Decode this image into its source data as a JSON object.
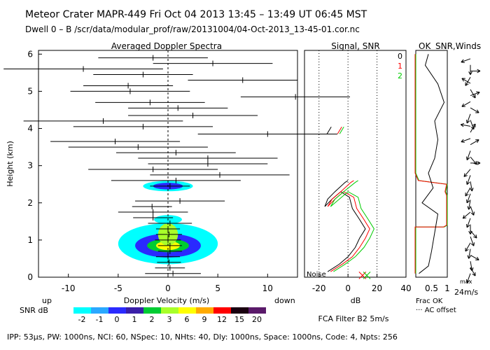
{
  "header": {
    "line1": "Meteor Crater   MAPR-449   Fri Oct 04 2013 13:45 – 13:49 UT 06:45 MST",
    "line2": "Dwell  0 –  B   /scr/data/modular_prof/raw/20131004/04-Oct-2013_13-45-01.cor.nc"
  },
  "footer": {
    "params": "IPP: 53μs,  PW: 1000ns,  NCI: 60,  NSpec: 10, NHts: 40,  Dly: 1000ns,  Space: 1000ns,  Code: 4,  Npts: 256",
    "filter": "FCA Filter B2   5m/s",
    "up": "up",
    "down": "down",
    "snr_db": "SNR dB",
    "noise": "Noise",
    "frac_ok": "Frac OK",
    "ac_offset": "··· AC offset",
    "wind_scale": "24m/s",
    "wind_scale_sup": "max",
    "ok_label": "OK"
  },
  "colorbar": {
    "labels": [
      "-2",
      "-1",
      "0",
      "1",
      "2",
      "3",
      "6",
      "9",
      "12",
      "15",
      "20"
    ],
    "colors": [
      "#00ffff",
      "#2aa8ff",
      "#2a2aff",
      "#3a1fa8",
      "#00cc33",
      "#a8ff2a",
      "#ffff00",
      "#ffaa00",
      "#ff0000",
      "#1a0010",
      "#5a1a6a"
    ]
  },
  "chart_data": [
    {
      "type": "scatter",
      "title": "Averaged Doppler Spectra",
      "xlabel": "Doppler Velocity (m/s)",
      "ylabel": "Height (km)",
      "xlim": [
        -13,
        13
      ],
      "ylim": [
        0,
        6.1
      ],
      "xticks": [
        "-10",
        "-5",
        "0",
        "5",
        "10"
      ],
      "yticks": [
        "0",
        "1",
        "2",
        "3",
        "4",
        "5",
        "6"
      ],
      "moments": [
        {
          "h": 0.1,
          "v": 0.5,
          "w": 2.8
        },
        {
          "h": 0.25,
          "v": 0.2,
          "w": 1.5
        },
        {
          "h": 0.4,
          "v": 0.1,
          "w": 1.2
        },
        {
          "h": 0.55,
          "v": 0.0,
          "w": 1.2
        },
        {
          "h": 0.7,
          "v": 0.2,
          "w": 1.2
        },
        {
          "h": 0.85,
          "v": 0.2,
          "w": 1.2
        },
        {
          "h": 1.0,
          "v": 0.0,
          "w": 1.3
        },
        {
          "h": 1.15,
          "v": 0.1,
          "w": 1.3
        },
        {
          "h": 1.3,
          "v": 0.0,
          "w": 1.2
        },
        {
          "h": 1.45,
          "v": 0.2,
          "w": 2.2
        },
        {
          "h": 1.6,
          "v": -1.5,
          "w": 2.0
        },
        {
          "h": 1.75,
          "v": -1.5,
          "w": 3.5
        },
        {
          "h": 1.9,
          "v": -1.6,
          "w": 2.0
        },
        {
          "h": 2.05,
          "v": 1.2,
          "w": 4.5
        },
        {
          "h": 2.45,
          "v": 0.2,
          "w": 2.0
        },
        {
          "h": 2.6,
          "v": 0.8,
          "w": 6.5
        },
        {
          "h": 2.75,
          "v": 5.2,
          "w": 7.0
        },
        {
          "h": 2.9,
          "v": -1.5,
          "w": 6.5
        },
        {
          "h": 3.05,
          "v": 4.0,
          "w": 6.0
        },
        {
          "h": 3.2,
          "v": 4.0,
          "w": 7.0
        },
        {
          "h": 3.35,
          "v": 0.8,
          "w": 6.0
        },
        {
          "h": 3.5,
          "v": -3.0,
          "w": 7.0
        },
        {
          "h": 3.65,
          "v": -5.3,
          "w": 6.5
        },
        {
          "h": 3.85,
          "v": 10.0,
          "w": 7.0
        },
        {
          "h": 4.05,
          "v": -2.5,
          "w": 7.0
        },
        {
          "h": 4.2,
          "v": -6.5,
          "w": 8.0
        },
        {
          "h": 4.35,
          "v": 2.5,
          "w": 6.5
        },
        {
          "h": 4.55,
          "v": 1.0,
          "w": 5.0
        },
        {
          "h": 4.7,
          "v": -1.8,
          "w": 5.5
        },
        {
          "h": 4.85,
          "v": 12.8,
          "w": 5.5
        },
        {
          "h": 5.0,
          "v": -3.8,
          "w": 6.0
        },
        {
          "h": 5.15,
          "v": -4.0,
          "w": 4.5
        },
        {
          "h": 5.3,
          "v": 7.5,
          "w": 5.5
        },
        {
          "h": 5.45,
          "v": -2.5,
          "w": 5.0
        },
        {
          "h": 5.6,
          "v": -8.5,
          "w": 8.0
        },
        {
          "h": 5.75,
          "v": 4.5,
          "w": 6.0
        },
        {
          "h": 5.9,
          "v": -1.5,
          "w": 5.5
        }
      ],
      "contours": [
        {
          "x": 0,
          "h": 0.9,
          "rx": 5.0,
          "rh": 0.55,
          "color": "#00ffff"
        },
        {
          "x": 0,
          "h": 0.85,
          "rx": 3.3,
          "rh": 0.32,
          "color": "#2a2aff"
        },
        {
          "x": 0,
          "h": 0.85,
          "rx": 2.1,
          "rh": 0.18,
          "color": "#00cc33"
        },
        {
          "x": 0,
          "h": 0.85,
          "rx": 1.2,
          "rh": 0.12,
          "color": "#ffff00"
        },
        {
          "x": 0,
          "h": 1.15,
          "rx": 1.0,
          "rh": 0.3,
          "color": "#a8ff2a"
        },
        {
          "x": 0,
          "h": 1.55,
          "rx": 1.4,
          "rh": 0.12,
          "color": "#00ffff"
        },
        {
          "x": 0,
          "h": 2.45,
          "rx": 2.5,
          "rh": 0.14,
          "color": "#00ffff"
        },
        {
          "x": 0,
          "h": 2.45,
          "rx": 1.5,
          "rh": 0.09,
          "color": "#2a2aff"
        }
      ]
    },
    {
      "type": "line",
      "title": "Signal, SNR",
      "xlabel": "dB",
      "xlim": [
        -30,
        40
      ],
      "ylim": [
        0,
        6.1
      ],
      "xticks": [
        "-20",
        "0",
        "20",
        "40"
      ],
      "legend": [
        "0",
        "1",
        "2"
      ],
      "series": [
        {
          "name": "0",
          "color": "#000000",
          "points": [
            [
              -14,
              0.15
            ],
            [
              -6,
              0.35
            ],
            [
              0,
              0.55
            ],
            [
              5,
              0.8
            ],
            [
              8,
              1.05
            ],
            [
              12,
              1.3
            ],
            [
              8,
              1.55
            ],
            [
              3,
              1.85
            ],
            [
              1,
              2.15
            ],
            [
              -5,
              2.3
            ],
            [
              -11,
              2.1
            ],
            [
              -16,
              1.9
            ],
            [
              -14,
              2.1
            ],
            [
              -9,
              2.3
            ],
            [
              -2,
              2.55
            ],
            [
              0,
              2.6
            ]
          ]
        },
        {
          "name": "1",
          "color": "#ff0000",
          "points": [
            [
              -12,
              0.15
            ],
            [
              -4,
              0.35
            ],
            [
              3,
              0.55
            ],
            [
              8,
              0.8
            ],
            [
              12,
              1.05
            ],
            [
              15,
              1.3
            ],
            [
              11,
              1.55
            ],
            [
              6,
              1.85
            ],
            [
              4,
              2.15
            ],
            [
              -3,
              2.3
            ],
            [
              -9,
              2.1
            ],
            [
              -14,
              1.9
            ],
            [
              -11,
              2.1
            ],
            [
              -5,
              2.3
            ],
            [
              2,
              2.55
            ],
            [
              4,
              2.6
            ]
          ]
        },
        {
          "name": "2",
          "color": "#00cc00",
          "points": [
            [
              -10,
              0.15
            ],
            [
              -2,
              0.35
            ],
            [
              5,
              0.55
            ],
            [
              11,
              0.8
            ],
            [
              15,
              1.05
            ],
            [
              18,
              1.3
            ],
            [
              14,
              1.55
            ],
            [
              9,
              1.85
            ],
            [
              7,
              2.15
            ],
            [
              0,
              2.3
            ],
            [
              -6,
              2.1
            ],
            [
              -12,
              1.9
            ],
            [
              -9,
              2.1
            ],
            [
              -3,
              2.3
            ],
            [
              5,
              2.55
            ],
            [
              7,
              2.6
            ]
          ]
        }
      ],
      "marker_at_4": {
        "x": -13,
        "h": 3.95
      }
    },
    {
      "type": "line",
      "title": "SNR,Winds",
      "xticks": [
        "0.5",
        "1"
      ],
      "fracok": [
        [
          0.0,
          0.1
        ],
        [
          0.0,
          1.35
        ],
        [
          0.9,
          1.35
        ],
        [
          1.0,
          1.4
        ],
        [
          1.0,
          2.2
        ],
        [
          0.95,
          2.3
        ],
        [
          1.0,
          2.5
        ],
        [
          0.1,
          2.6
        ],
        [
          0.0,
          2.8
        ],
        [
          0.0,
          6.0
        ]
      ],
      "snr": [
        [
          0.1,
          0.1
        ],
        [
          0.4,
          0.3
        ],
        [
          0.5,
          0.7
        ],
        [
          0.6,
          1.2
        ],
        [
          0.7,
          1.7
        ],
        [
          0.2,
          2.0
        ],
        [
          0.55,
          2.4
        ],
        [
          0.4,
          2.8
        ],
        [
          0.6,
          3.2
        ],
        [
          0.7,
          3.7
        ],
        [
          0.6,
          4.2
        ],
        [
          0.9,
          4.7
        ],
        [
          0.7,
          5.2
        ],
        [
          0.3,
          5.7
        ],
        [
          0.4,
          6.0
        ]
      ]
    }
  ]
}
